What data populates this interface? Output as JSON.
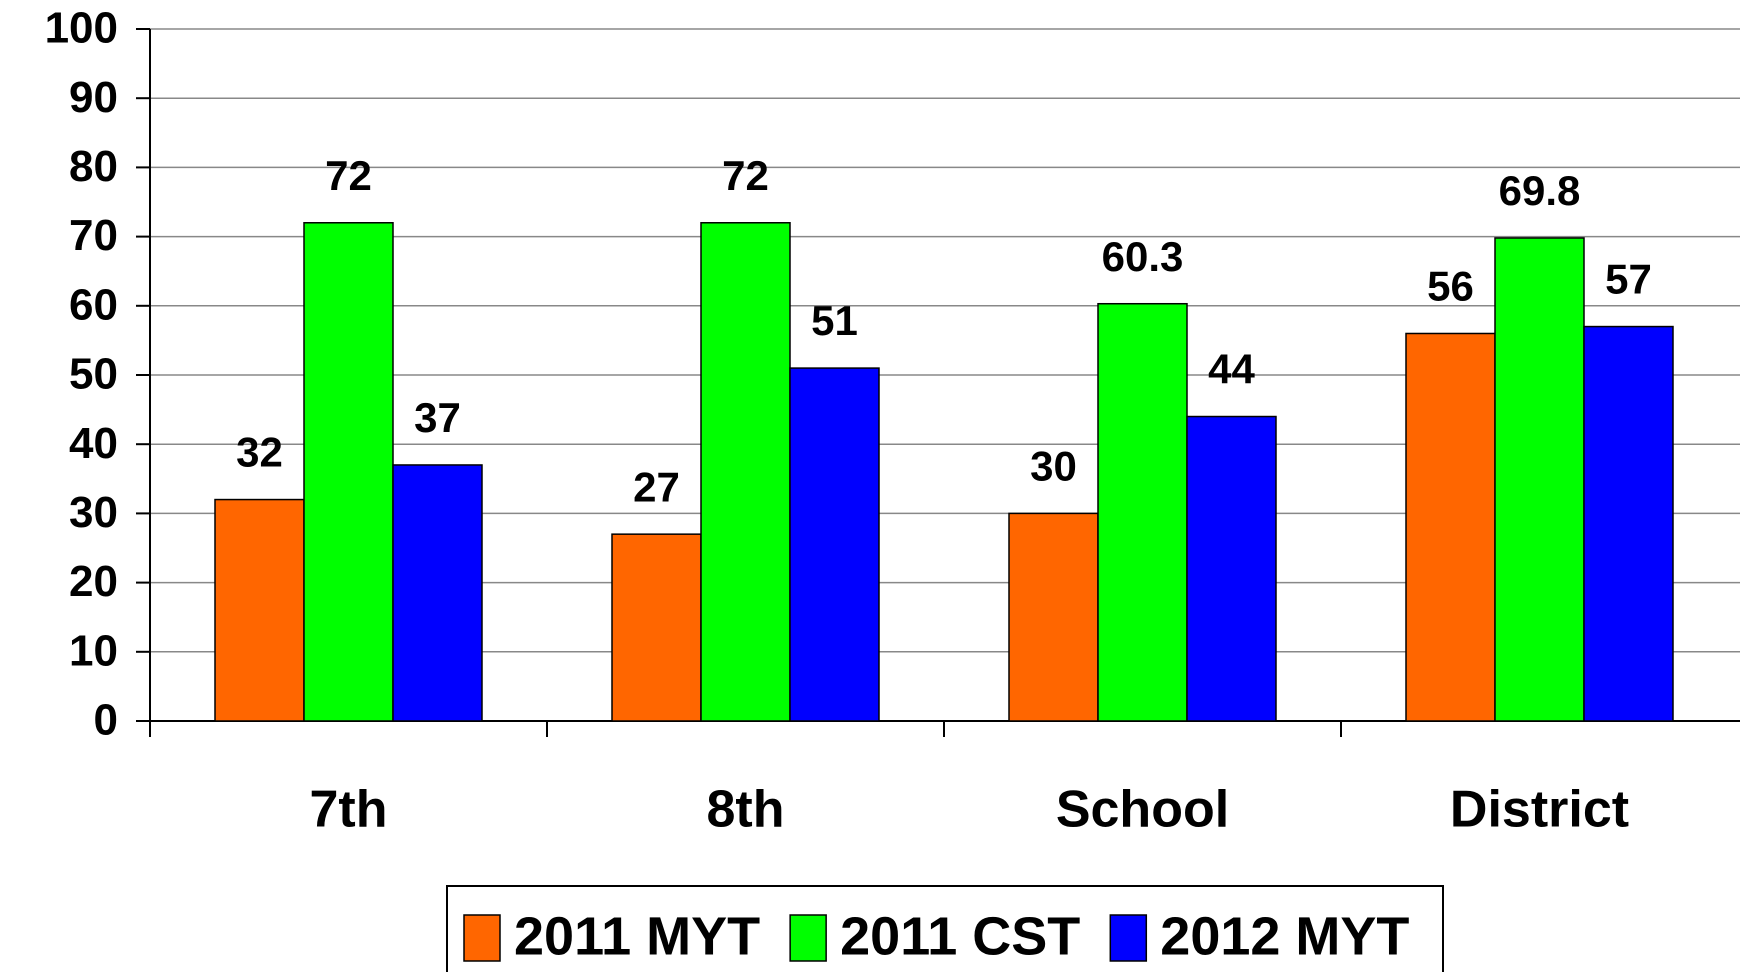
{
  "chart_data": {
    "type": "bar",
    "categories": [
      "7th",
      "8th",
      "School",
      "District"
    ],
    "series": [
      {
        "name": "2011 MYT",
        "color": "#ff6600",
        "values": [
          32,
          27,
          30,
          56
        ]
      },
      {
        "name": "2011 CST",
        "color": "#00ff00",
        "values": [
          72,
          72,
          60.3,
          69.8
        ]
      },
      {
        "name": "2012 MYT",
        "color": "#0000ff",
        "values": [
          37,
          51,
          44,
          57
        ]
      }
    ],
    "ylim": [
      0,
      100
    ],
    "yticks": [
      0,
      10,
      20,
      30,
      40,
      50,
      60,
      70,
      80,
      90,
      100
    ],
    "grid": true,
    "legend": "bottom"
  }
}
